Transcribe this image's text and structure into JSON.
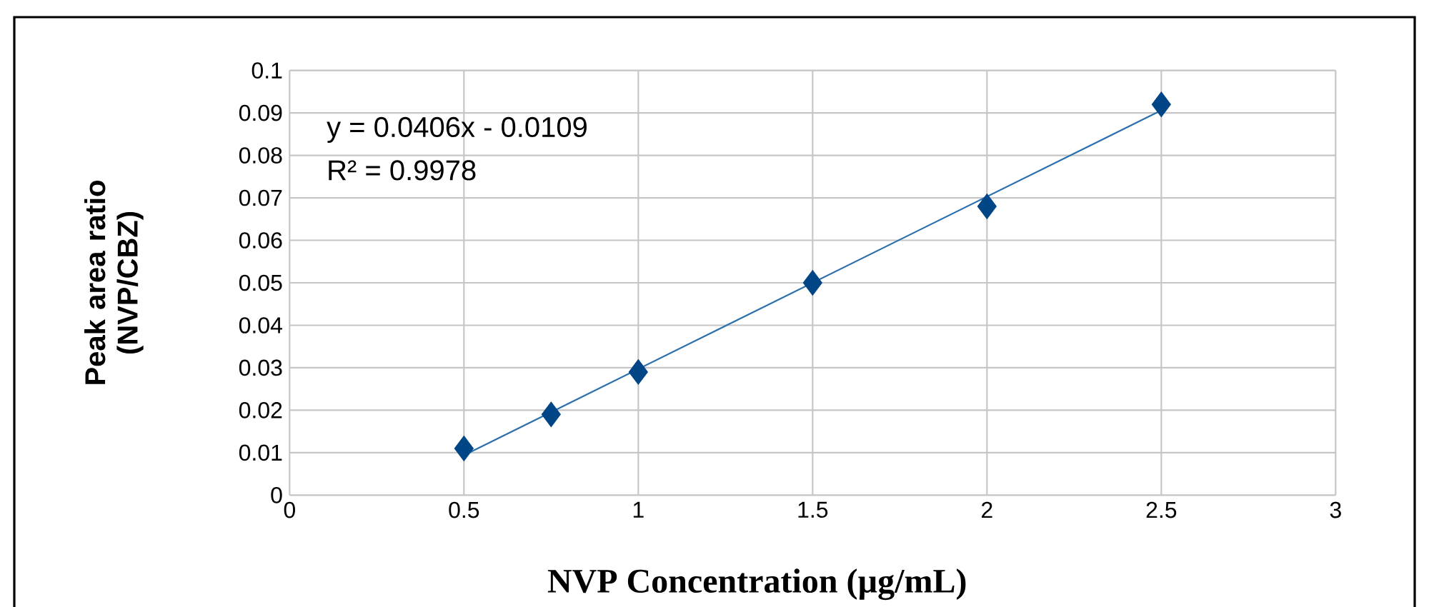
{
  "chart_data": {
    "type": "scatter",
    "xlabel": "NVP Concentration (µg/mL)",
    "ylabel": "Peak area ratio (NVP/CBZ)",
    "x": [
      0.5,
      0.75,
      1,
      1.5,
      2,
      2.5
    ],
    "series": [
      {
        "color": "#004586",
        "values": [
          0.011,
          0.019,
          0.029,
          0.05,
          0.068,
          0.092
        ],
        "marker": "diamond"
      },
      {
        "type": "line",
        "color": "#2a6ead",
        "x": [
          0.5,
          2.5
        ],
        "values": [
          0.0094,
          0.0906
        ],
        "marker": "none"
      }
    ],
    "annotations": [
      "y = 0.0406x - 0.0109",
      "R² = 0.9978"
    ],
    "xlim": [
      0,
      3
    ],
    "xticks": [
      0,
      0.5,
      1,
      1.5,
      2,
      2.5,
      3
    ],
    "ylim": [
      0,
      0.1
    ],
    "yticks": [
      0,
      0.01,
      0.02,
      0.03,
      0.04,
      0.05,
      0.06,
      0.07,
      0.08,
      0.09,
      0.1
    ],
    "grid": true,
    "legend": false
  }
}
